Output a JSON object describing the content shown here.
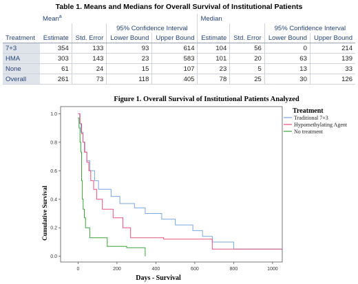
{
  "table": {
    "title": "Table 1. Means and Medians for Overall Survival of Institutional Patients",
    "mean_header": "Mean",
    "mean_sup": "a",
    "median_header": "Median",
    "ci_header": "95% Confidence Interval",
    "columns": [
      "Treatment",
      "Estimate",
      "Std. Error",
      "Lower Bound",
      "Upper Bound",
      "Estimate",
      "Std. Error",
      "Lower Bound",
      "Upper Bound"
    ],
    "rows": [
      {
        "label": "7+3",
        "values": [
          "354",
          "133",
          "93",
          "614",
          "104",
          "56",
          "0",
          "214"
        ]
      },
      {
        "label": "HMA",
        "values": [
          "303",
          "143",
          "23",
          "583",
          "101",
          "20",
          "63",
          "139"
        ]
      },
      {
        "label": "None",
        "values": [
          "61",
          "24",
          "15",
          "107",
          "23",
          "5",
          "13",
          "33"
        ]
      },
      {
        "label": "Overall",
        "values": [
          "261",
          "73",
          "118",
          "405",
          "78",
          "25",
          "30",
          "126"
        ]
      }
    ]
  },
  "chart_data": {
    "type": "line",
    "title": "Figure 1.  Overall Survival of Institutional Patients Analyzed",
    "xlabel": "Days - Survival",
    "ylabel": "Cumulative Survival",
    "xlim": [
      -90,
      1050
    ],
    "ylim": [
      -0.04,
      1.05
    ],
    "xticks": [
      0,
      200,
      400,
      600,
      800,
      1000
    ],
    "yticks": [
      0.0,
      0.2,
      0.4,
      0.6,
      0.8,
      1.0
    ],
    "ytick_labels": [
      "0.0",
      "0.2",
      "0.4",
      "0.6",
      "0.8",
      "1.0"
    ],
    "legend_title": "Treatment",
    "legend_position": "right",
    "series": [
      {
        "name": "Traditional 7+3",
        "color": "#7aa6e0",
        "points": [
          [
            0,
            1.0
          ],
          [
            8,
            1.0
          ],
          [
            8,
            0.93
          ],
          [
            15,
            0.93
          ],
          [
            15,
            0.87
          ],
          [
            25,
            0.87
          ],
          [
            25,
            0.8
          ],
          [
            35,
            0.8
          ],
          [
            35,
            0.73
          ],
          [
            45,
            0.73
          ],
          [
            45,
            0.67
          ],
          [
            60,
            0.67
          ],
          [
            60,
            0.6
          ],
          [
            85,
            0.6
          ],
          [
            85,
            0.53
          ],
          [
            105,
            0.53
          ],
          [
            105,
            0.47
          ],
          [
            170,
            0.47
          ],
          [
            170,
            0.42
          ],
          [
            215,
            0.42
          ],
          [
            215,
            0.37
          ],
          [
            290,
            0.37
          ],
          [
            290,
            0.34
          ],
          [
            345,
            0.34
          ],
          [
            345,
            0.3
          ],
          [
            430,
            0.3
          ],
          [
            430,
            0.26
          ],
          [
            500,
            0.26
          ],
          [
            500,
            0.22
          ],
          [
            590,
            0.22
          ],
          [
            590,
            0.18
          ],
          [
            640,
            0.18
          ],
          [
            640,
            0.14
          ],
          [
            690,
            0.14
          ],
          [
            690,
            0.1
          ],
          [
            800,
            0.1
          ],
          [
            800,
            0.05
          ],
          [
            1050,
            0.05
          ]
        ]
      },
      {
        "name": "Hypomethylating Agent",
        "color": "#e8507a",
        "points": [
          [
            0,
            1.0
          ],
          [
            10,
            1.0
          ],
          [
            10,
            0.93
          ],
          [
            18,
            0.93
          ],
          [
            18,
            0.86
          ],
          [
            25,
            0.86
          ],
          [
            25,
            0.8
          ],
          [
            33,
            0.8
          ],
          [
            33,
            0.73
          ],
          [
            45,
            0.73
          ],
          [
            45,
            0.66
          ],
          [
            55,
            0.66
          ],
          [
            55,
            0.6
          ],
          [
            65,
            0.6
          ],
          [
            65,
            0.53
          ],
          [
            80,
            0.53
          ],
          [
            80,
            0.47
          ],
          [
            95,
            0.47
          ],
          [
            95,
            0.4
          ],
          [
            125,
            0.4
          ],
          [
            125,
            0.33
          ],
          [
            180,
            0.33
          ],
          [
            180,
            0.27
          ],
          [
            230,
            0.27
          ],
          [
            230,
            0.2
          ],
          [
            270,
            0.2
          ],
          [
            270,
            0.13
          ],
          [
            440,
            0.13
          ],
          [
            440,
            0.12
          ],
          [
            690,
            0.12
          ],
          [
            690,
            0.05
          ],
          [
            1050,
            0.05
          ]
        ]
      },
      {
        "name": "No treatment",
        "color": "#3aa03a",
        "points": [
          [
            0,
            0.97
          ],
          [
            5,
            0.97
          ],
          [
            5,
            0.9
          ],
          [
            10,
            0.9
          ],
          [
            10,
            0.8
          ],
          [
            14,
            0.8
          ],
          [
            14,
            0.73
          ],
          [
            18,
            0.73
          ],
          [
            18,
            0.53
          ],
          [
            22,
            0.53
          ],
          [
            22,
            0.4
          ],
          [
            26,
            0.4
          ],
          [
            26,
            0.33
          ],
          [
            32,
            0.33
          ],
          [
            32,
            0.27
          ],
          [
            38,
            0.27
          ],
          [
            38,
            0.2
          ],
          [
            60,
            0.2
          ],
          [
            60,
            0.13
          ],
          [
            150,
            0.13
          ],
          [
            150,
            0.07
          ],
          [
            250,
            0.07
          ],
          [
            250,
            0.06
          ],
          [
            345,
            0.06
          ],
          [
            345,
            0.0
          ]
        ]
      }
    ]
  }
}
